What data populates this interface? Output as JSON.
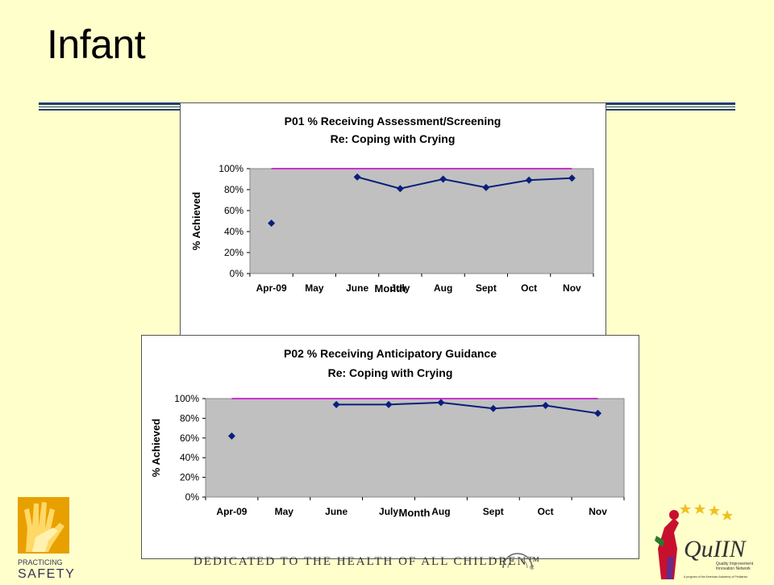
{
  "slide": {
    "title": "Infant",
    "footer": "DEDICATED TO THE HEALTH OF ALL CHILDREN™",
    "colors": {
      "background": "#ffffcc",
      "rule": "#1f3e7a",
      "plot_bg": "#c0c0c0",
      "series": "#0a1f7a",
      "goal": "#cc33cc"
    }
  },
  "logos": {
    "left": {
      "text1": "PRACTICING",
      "text2": "SAFETY",
      "icon": "hands-logo-icon"
    },
    "right": {
      "text": "QuIIN",
      "sub1": "Quality Improvement",
      "sub2": "Innovation Network",
      "sub3": "A program of the American Academy of Pediatrics",
      "icon": "quiin-figure-icon"
    },
    "seal": {
      "icon": "aap-seal-icon"
    }
  },
  "chart_data": [
    {
      "type": "line",
      "title": "P01 % Receiving Assessment/Screening",
      "subtitle": "Re: Coping with Crying",
      "xlabel": "Month",
      "ylabel": "% Achieved",
      "categories": [
        "Apr-09",
        "May",
        "June",
        "July",
        "Aug",
        "Sept",
        "Oct",
        "Nov"
      ],
      "ylim": [
        0,
        100
      ],
      "yticks": [
        "0%",
        "20%",
        "40%",
        "60%",
        "80%",
        "100%"
      ],
      "series": [
        {
          "values": [
            48,
            null,
            92,
            81,
            90,
            82,
            89,
            91
          ]
        }
      ],
      "goal": {
        "value": 100
      },
      "grid": false,
      "legend": "none"
    },
    {
      "type": "line",
      "title": "P02 % Receiving Anticipatory Guidance",
      "subtitle": "Re: Coping with Crying",
      "xlabel": "Month",
      "ylabel": "% Achieved",
      "categories": [
        "Apr-09",
        "May",
        "June",
        "July",
        "Aug",
        "Sept",
        "Oct",
        "Nov"
      ],
      "ylim": [
        0,
        100
      ],
      "yticks": [
        "0%",
        "20%",
        "40%",
        "60%",
        "80%",
        "100%"
      ],
      "series": [
        {
          "values": [
            62,
            null,
            94,
            94,
            96,
            90,
            93,
            85
          ]
        }
      ],
      "goal": {
        "value": 100
      },
      "grid": false,
      "legend": "none"
    }
  ]
}
